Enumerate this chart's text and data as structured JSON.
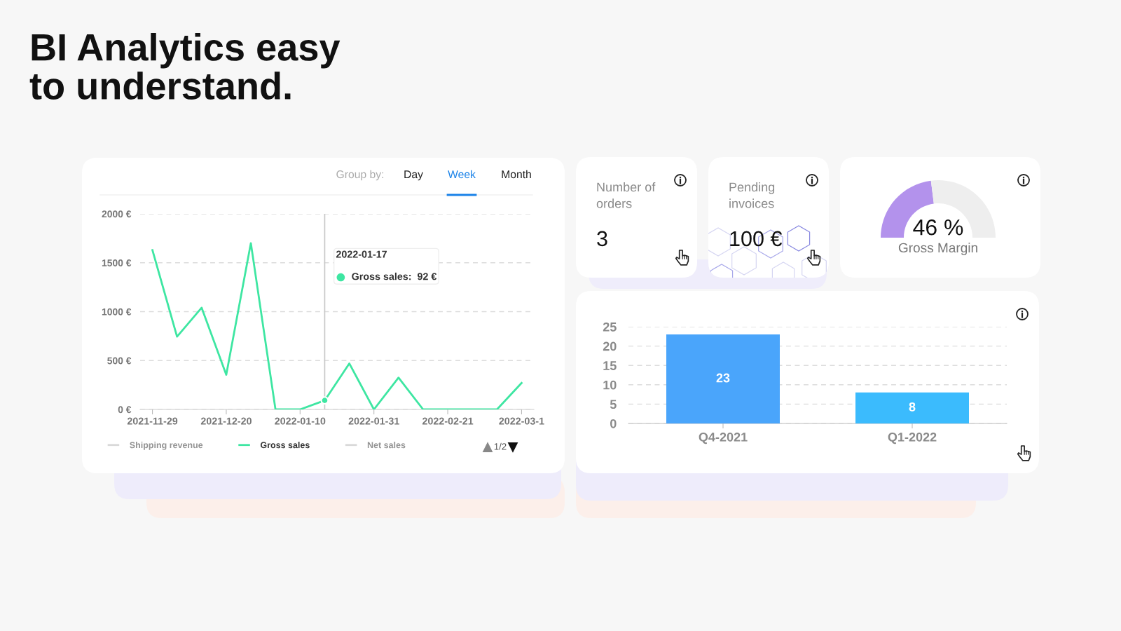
{
  "chart_data": [
    {
      "type": "line",
      "title": "BI Analytics easy\nto understand.",
      "x": [
        "2021-11-29",
        "2021-12-06",
        "2021-12-13",
        "2021-12-20",
        "2021-12-27",
        "2022-01-03",
        "2022-01-10",
        "2022-01-17",
        "2022-01-24",
        "2022-01-31",
        "2022-02-07",
        "2022-02-14",
        "2022-02-21",
        "2022-02-28",
        "2022-03-07",
        "2022-03-14"
      ],
      "series": [
        {
          "name": "Shipping revenue",
          "color": "#d9d9d9",
          "values": [
            null,
            null,
            null,
            null,
            null,
            null,
            null,
            null,
            null,
            null,
            null,
            null,
            null,
            null,
            null,
            null
          ]
        },
        {
          "name": "Gross sales",
          "color": "#3ee6a2",
          "values": [
            1630,
            745,
            1040,
            355,
            1700,
            0,
            0,
            92,
            470,
            0,
            325,
            0,
            0,
            0,
            0,
            270
          ]
        },
        {
          "name": "Net sales",
          "color": "#d9d9d9",
          "values": [
            null,
            null,
            null,
            null,
            null,
            null,
            null,
            null,
            null,
            null,
            null,
            null,
            null,
            null,
            null,
            null
          ]
        }
      ],
      "xlim": [
        "2021-11-25T12:00",
        "2022-03-17T12:00"
      ],
      "xticks": [
        {
          "value": "2021-11-29",
          "label": "2021-11-29"
        },
        {
          "value": "2021-12-20",
          "label": "2021-12-20"
        },
        {
          "value": "2022-01-10",
          "label": "2022-01-10"
        },
        {
          "value": "2022-01-31",
          "label": "2022-01-31"
        },
        {
          "value": "2022-02-21",
          "label": "2022-02-21"
        },
        {
          "value": "2022-03-14",
          "label": "2022-03-1"
        }
      ],
      "ylim": [
        0,
        2000
      ],
      "yticks": [
        {
          "value": 0,
          "label": "0 €"
        },
        {
          "value": 500,
          "label": "500 €"
        },
        {
          "value": 1000,
          "label": "1000 €"
        },
        {
          "value": 1500,
          "label": "1500 €"
        },
        {
          "value": 2000,
          "label": "2000 €"
        }
      ],
      "grid": "y",
      "legend": "bottom",
      "line_style": "solid",
      "ref_lines": [
        {
          "axis": "x",
          "value": "2022-01-17",
          "color": "#c8c8c8"
        }
      ],
      "annotations": [
        "Group by:",
        "Day",
        "Week",
        "Month",
        "2022-01-17",
        "Gross sales:  92 €",
        "1/2"
      ]
    },
    {
      "type": "other",
      "title": "Number of\norders",
      "annotations": [
        "3"
      ]
    },
    {
      "type": "other",
      "title": "Pending\ninvoices",
      "annotations": [
        "100 €"
      ]
    },
    {
      "type": "donut",
      "title": "Gross Margin",
      "categories": [
        null,
        null
      ],
      "values": [
        46,
        54
      ],
      "colors": [
        "#b392ec",
        "#eeeeee"
      ],
      "value_labels": [
        "46 %",
        null
      ]
    },
    {
      "type": "bar",
      "categories": [
        "Q4-2021",
        "Q1-2022"
      ],
      "values": [
        23,
        8
      ],
      "colors": [
        "#4aa5fb",
        "#3bbbfd"
      ],
      "ylim": [
        0,
        25
      ],
      "yticks": [
        0,
        5,
        10,
        15,
        20,
        25
      ],
      "grid": "y",
      "data_labels": true
    }
  ]
}
